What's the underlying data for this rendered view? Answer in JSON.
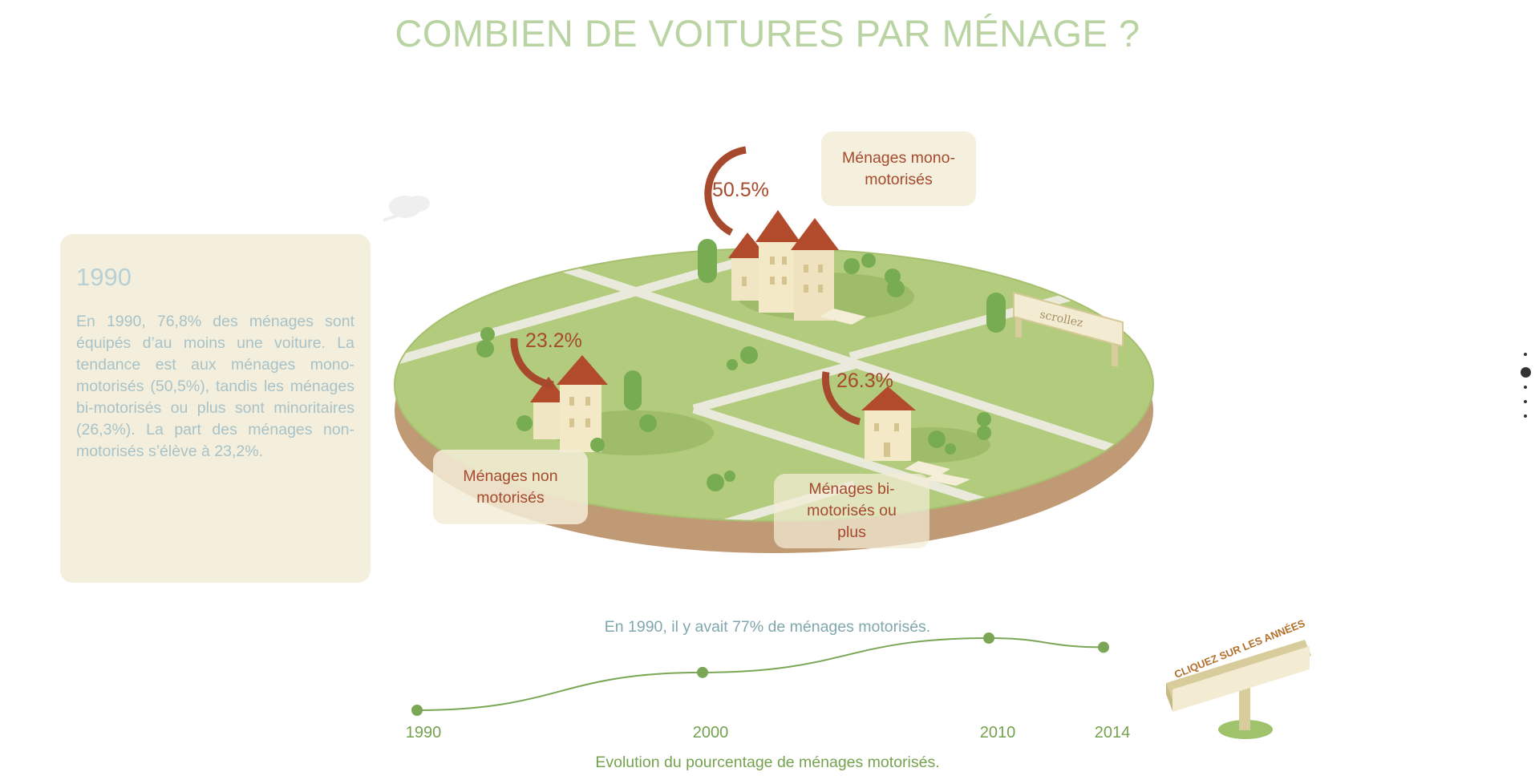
{
  "title": "COMBIEN DE VOITURES PAR MÉNAGE ?",
  "info": {
    "year": "1990",
    "text": "En 1990, 76,8% des ménages sont équipés d’au moins une voiture. La tendance est aux ménages mono-motorisés (50,5%), tandis les ménages bi-motorisés ou plus sont minoritaires (26,3%). La part des ménages non-motorisés s’élève à 23,2%."
  },
  "categories": [
    {
      "label": "Ménages mono-motorisés",
      "pct_label": "50.5%",
      "value": 50.5
    },
    {
      "label": "Ménages non motorisés",
      "pct_label": "23.2%",
      "value": 23.2
    },
    {
      "label": "Ménages bi-motorisés ou plus",
      "pct_label": "26.3%",
      "value": 26.3
    }
  ],
  "sign_scrollez": "scrollez",
  "sign_years": "CLIQUEZ SUR LES ANNÉES",
  "evolution": {
    "sentence": "En 1990, il y avait 77% de ménages motorisés.",
    "caption": "Evolution du pourcentage de ménages motorisés."
  },
  "nav": {
    "count": 5,
    "active": 1
  },
  "chart_data": {
    "type": "line",
    "x": [
      "1990",
      "2000",
      "2010",
      "2014"
    ],
    "values": [
      77,
      80.3,
      83.3,
      82.5
    ],
    "title": "",
    "xlabel": "Evolution du pourcentage de ménages motorisés.",
    "ylabel": "",
    "grid": false
  },
  "colors": {
    "title": "#b9d4a2",
    "accent_red": "#a6492d",
    "grass": "#b2cb7c",
    "line_green": "#75a24f",
    "card": "#f4efdc"
  }
}
